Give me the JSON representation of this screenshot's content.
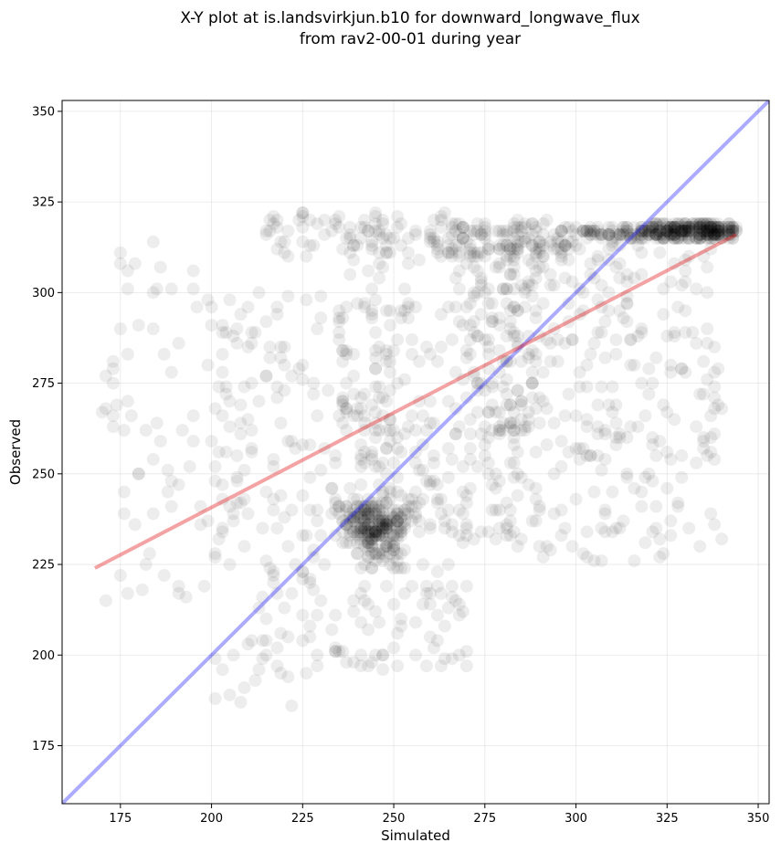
{
  "chart_data": {
    "type": "scatter",
    "title_line1": "X-Y plot at is.landsvirkjun.b10 for downward_longwave_flux",
    "title_line2": "from rav2-00-01 during year",
    "xlabel": "Simulated",
    "ylabel": "Observed",
    "xlim": [
      159,
      353
    ],
    "ylim": [
      159,
      353
    ],
    "xticks": [
      175,
      200,
      225,
      250,
      275,
      300,
      325,
      350
    ],
    "yticks": [
      175,
      200,
      225,
      250,
      275,
      300,
      325,
      350
    ],
    "grid": true,
    "point_color": "#000000",
    "point_opacity": 0.07,
    "identity_line": {
      "from": [
        159,
        159
      ],
      "to": [
        353,
        353
      ],
      "color": "#0000ff"
    },
    "fit_line": {
      "from": [
        168,
        224
      ],
      "to": [
        344,
        316
      ],
      "color": "#e31a1c"
    },
    "clusters": [
      {
        "x": [
          320,
          344
        ],
        "y": [
          315,
          319
        ],
        "n": 260,
        "dist": "uniform"
      },
      {
        "x": [
          300,
          320
        ],
        "y": [
          315,
          318
        ],
        "n": 70,
        "dist": "uniform"
      },
      {
        "x": [
          265,
          300
        ],
        "y": [
          310,
          320
        ],
        "n": 120,
        "dist": "uniform"
      },
      {
        "x": [
          215,
          265
        ],
        "y": [
          310,
          322
        ],
        "n": 90,
        "dist": "uniform"
      },
      {
        "x": [
          232,
          258
        ],
        "y": [
          222,
          248
        ],
        "n": 230,
        "dist": "gauss"
      },
      {
        "x": [
          240,
          285
        ],
        "y": [
          230,
          265
        ],
        "n": 130,
        "dist": "uniform"
      },
      {
        "x": [
          270,
          340
        ],
        "y": [
          260,
          315
        ],
        "n": 240,
        "dist": "uniform"
      },
      {
        "x": [
          285,
          340
        ],
        "y": [
          225,
          260
        ],
        "n": 90,
        "dist": "uniform"
      },
      {
        "x": [
          210,
          270
        ],
        "y": [
          195,
          225
        ],
        "n": 110,
        "dist": "uniform"
      },
      {
        "x": [
          200,
          250
        ],
        "y": [
          225,
          300
        ],
        "n": 160,
        "dist": "uniform"
      },
      {
        "x": [
          235,
          290
        ],
        "y": [
          260,
          310
        ],
        "n": 170,
        "dist": "uniform"
      },
      {
        "x": [
          170,
          205
        ],
        "y": [
          215,
          320
        ],
        "n": 75,
        "dist": "uniform"
      },
      {
        "x": [
          200,
          225
        ],
        "y": [
          185,
          200
        ],
        "n": 12,
        "dist": "uniform"
      }
    ]
  }
}
